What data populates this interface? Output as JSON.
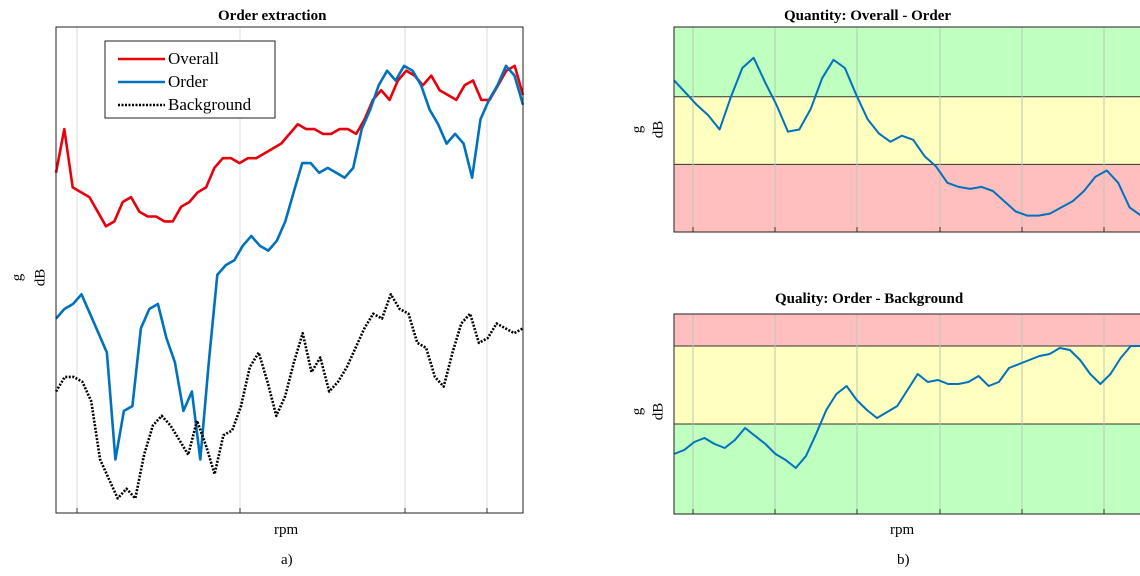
{
  "chart_data": [
    {
      "type": "line",
      "title": "Order extraction",
      "xlabel": "rpm",
      "ylabel": [
        "g",
        "dB"
      ],
      "panel_label": "a)",
      "xlim": [
        0,
        100
      ],
      "ylim": [
        0,
        100
      ],
      "grid": "vertical",
      "legend_position": "top-left",
      "series": [
        {
          "name": "Overall",
          "color": "#e8000b",
          "style": "solid",
          "values": [
            70,
            79,
            67,
            66,
            65,
            62,
            59,
            60,
            64,
            65,
            62,
            61,
            61,
            60,
            60,
            63,
            64,
            66,
            67,
            71,
            73,
            73,
            72,
            73,
            73,
            74,
            75,
            76,
            78,
            80,
            79,
            79,
            78,
            78,
            79,
            79,
            78,
            81,
            85,
            87,
            85,
            89,
            91,
            90,
            88,
            90,
            87,
            86,
            85,
            88,
            89,
            85,
            85,
            88,
            91,
            92,
            86
          ]
        },
        {
          "name": "Order",
          "color": "#0072bd",
          "style": "solid",
          "values": [
            40,
            42,
            43,
            45,
            41,
            37,
            33,
            11,
            21,
            22,
            38,
            42,
            43,
            36,
            31,
            21,
            25,
            11,
            31,
            49,
            51,
            52,
            55,
            57,
            55,
            54,
            56,
            60,
            66,
            72,
            72,
            70,
            71,
            70,
            69,
            71,
            79,
            83,
            88,
            91,
            89,
            92,
            91,
            88,
            83,
            80,
            76,
            78,
            76,
            69,
            81,
            85,
            88,
            92,
            90,
            84
          ]
        },
        {
          "name": "Background",
          "color": "#000000",
          "style": "dotted",
          "values": [
            25,
            28,
            28,
            27,
            23,
            11,
            7,
            3,
            5,
            3,
            12,
            18,
            20,
            18,
            15,
            12,
            19,
            14,
            8,
            16,
            17,
            22,
            30,
            33,
            27,
            20,
            24,
            31,
            37,
            29,
            32,
            25,
            27,
            30,
            34,
            38,
            41,
            40,
            45,
            42,
            41,
            35,
            34,
            28,
            26,
            33,
            39,
            41,
            35,
            36,
            39,
            38,
            37,
            38
          ]
        }
      ]
    },
    {
      "type": "line",
      "title": "Quantity: Overall - Order",
      "xlabel": "rpm",
      "ylabel": [
        "g",
        "dB"
      ],
      "panel_label": "b)",
      "xlim": [
        0,
        100
      ],
      "ylim": [
        0,
        100
      ],
      "grid": "vertical",
      "zones": [
        {
          "from": 66,
          "to": 100,
          "color": "#bfffbf"
        },
        {
          "from": 33,
          "to": 66,
          "color": "#ffffbf"
        },
        {
          "from": 0,
          "to": 33,
          "color": "#ffbfbf"
        }
      ],
      "series": [
        {
          "name": "",
          "color": "#0072bd",
          "style": "solid",
          "values": [
            74,
            68,
            62,
            57,
            50,
            66,
            80,
            85,
            73,
            62,
            49,
            50,
            60,
            75,
            84,
            80,
            67,
            55,
            48,
            44,
            47,
            45,
            37,
            32,
            24,
            22,
            21,
            22,
            20,
            15,
            10,
            8,
            8,
            9,
            12,
            15,
            20,
            27,
            30,
            24,
            12,
            8
          ]
        }
      ]
    },
    {
      "type": "line",
      "title": "Quality: Order - Background",
      "xlabel": "rpm",
      "ylabel": [
        "g",
        "dB"
      ],
      "xlim": [
        0,
        100
      ],
      "ylim": [
        0,
        100
      ],
      "grid": "vertical",
      "zones": [
        {
          "from": 84,
          "to": 100,
          "color": "#ffbfbf"
        },
        {
          "from": 45,
          "to": 84,
          "color": "#ffffbf"
        },
        {
          "from": 0,
          "to": 45,
          "color": "#bfffbf"
        }
      ],
      "series": [
        {
          "name": "",
          "color": "#0072bd",
          "style": "solid",
          "values": [
            30,
            32,
            36,
            38,
            35,
            33,
            37,
            43,
            39,
            35,
            30,
            27,
            23,
            29,
            40,
            52,
            60,
            64,
            57,
            52,
            48,
            51,
            54,
            62,
            70,
            66,
            67,
            65,
            65,
            66,
            69,
            64,
            66,
            73,
            75,
            77,
            79,
            80,
            83,
            82,
            77,
            70,
            65,
            70,
            78,
            84,
            84
          ]
        }
      ]
    }
  ]
}
